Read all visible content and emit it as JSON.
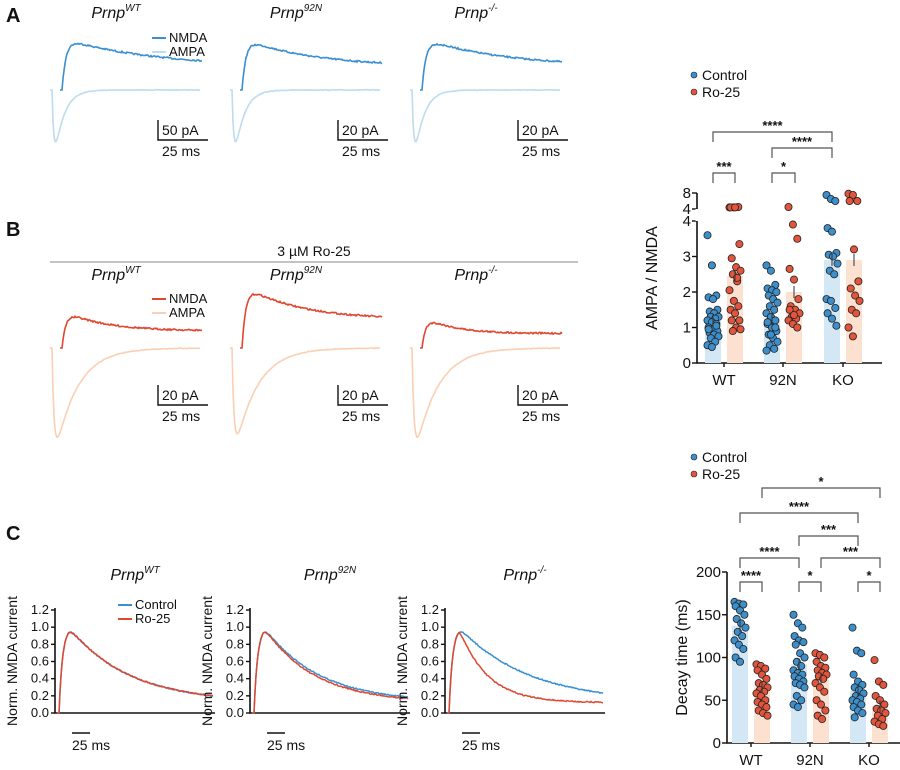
{
  "colors": {
    "nmda": "#3a8fd0",
    "ampa": "#bcdcef",
    "nmda_ro": "#e0472f",
    "ampa_ro": "#fbcfb4",
    "bar_control": "#d3e7f5",
    "bar_ro": "#fde1d0",
    "dot_control": "#3d8fcc",
    "dot_ro": "#e2553c"
  },
  "panels": {
    "A": {
      "label": "A",
      "titles": [
        {
          "base": "Prnp",
          "sup": "WT"
        },
        {
          "base": "Prnp",
          "sup": "92N"
        },
        {
          "base": "Prnp",
          "sup": "-/-"
        }
      ],
      "legend": [
        "NMDA",
        "AMPA"
      ],
      "scale_y": [
        "50 pA",
        "20 pA",
        "20 pA"
      ],
      "scale_x": "25 ms"
    },
    "B": {
      "label": "B",
      "condition": "3 µM Ro-25",
      "titles": [
        {
          "base": "Prnp",
          "sup": "WT"
        },
        {
          "base": "Prnp",
          "sup": "92N"
        },
        {
          "base": "Prnp",
          "sup": "-/-"
        }
      ],
      "legend": [
        "NMDA",
        "AMPA"
      ],
      "scale_y": [
        "20 pA",
        "20 pA",
        "20 pA"
      ],
      "scale_x": "25 ms"
    },
    "C": {
      "label": "C",
      "titles": [
        {
          "base": "Prnp",
          "sup": "WT"
        },
        {
          "base": "Prnp",
          "sup": "92N"
        },
        {
          "base": "Prnp",
          "sup": "-/-"
        }
      ],
      "legend": [
        "Control",
        "Ro-25"
      ],
      "ylabel": "Norm. NMDA current",
      "yticks": [
        "0.0",
        "0.2",
        "0.4",
        "0.6",
        "0.8",
        "1.0",
        "1.2"
      ],
      "scale_x": "25 ms"
    }
  },
  "chart_data": [
    {
      "type": "bar",
      "ylabel": "AMPA / NMDA",
      "categories": [
        "WT",
        "92N",
        "KO"
      ],
      "yticks": [
        "0",
        "1",
        "2",
        "3",
        "4",
        "4",
        "8"
      ],
      "ylim": [
        0,
        8
      ],
      "axis_break": [
        4,
        4
      ],
      "legend": [
        "Control",
        "Ro-25"
      ],
      "legend_placement": "top-left",
      "series": [
        {
          "name": "Control",
          "means": [
            1.2,
            1.25,
            2.9
          ],
          "points": [
            [
              3.6,
              2.75,
              1.9,
              1.85,
              1.8,
              1.5,
              1.45,
              1.4,
              1.3,
              1.3,
              1.25,
              1.2,
              1.15,
              1.1,
              1.0,
              0.95,
              0.9,
              0.85,
              0.8,
              0.75,
              0.7,
              0.6,
              0.5,
              0.45,
              1.05,
              0.95
            ],
            [
              2.75,
              2.6,
              2.2,
              2.1,
              2.05,
              2.0,
              1.9,
              1.8,
              1.7,
              1.6,
              1.5,
              1.4,
              1.3,
              1.2,
              1.1,
              1.0,
              0.9,
              0.8,
              0.7,
              0.6,
              0.5,
              0.4,
              0.35,
              0.8,
              1.0,
              1.15
            ],
            [
              7.5,
              6.5,
              6.0,
              3.8,
              3.7,
              3.1,
              3.05,
              3.0,
              2.8,
              2.6,
              2.5,
              1.8,
              1.75,
              1.55,
              1.4,
              1.25,
              1.05
            ]
          ]
        },
        {
          "name": "Ro-25",
          "means": [
            2.45,
            2.0,
            2.9
          ],
          "points": [
            [
              4.4,
              4.4,
              4.5,
              4.4,
              4.4,
              3.35,
              2.95,
              2.7,
              2.6,
              2.5,
              2.3,
              2.05,
              1.75,
              1.6,
              1.5,
              1.4,
              1.2,
              1.2,
              1.0,
              0.95,
              0.9,
              2.4
            ],
            [
              4.5,
              3.9,
              3.5,
              2.65,
              2.35,
              1.8,
              1.6,
              1.5,
              1.4,
              1.3,
              1.25,
              1.2,
              1.1,
              1.0,
              1.5,
              1.35
            ],
            [
              7.8,
              7.5,
              6.0,
              6.0,
              3.2,
              2.3,
              2.1,
              1.9,
              1.75,
              1.5,
              1.4,
              1.0,
              0.75
            ]
          ]
        }
      ],
      "significance": [
        {
          "from": "WT Control",
          "to": "KO Control",
          "label": "****"
        },
        {
          "from": "92N Control",
          "to": "KO Control",
          "label": "****"
        },
        {
          "from": "WT Control",
          "to": "WT Ro-25",
          "label": "***"
        },
        {
          "from": "92N Control",
          "to": "92N Ro-25",
          "label": "*"
        }
      ]
    },
    {
      "type": "bar",
      "ylabel": "Decay time (ms)",
      "categories": [
        "WT",
        "92N",
        "KO"
      ],
      "yticks": [
        "0",
        "50",
        "100",
        "150",
        "200"
      ],
      "ylim": [
        0,
        200
      ],
      "legend": [
        "Control",
        "Ro-25"
      ],
      "legend_placement": "top-left",
      "series": [
        {
          "name": "Control",
          "means": [
            137,
            92,
            61
          ],
          "points": [
            [
              165,
              163,
              162,
              160,
              155,
              150,
              145,
              140,
              135,
              130,
              125,
              120,
              115,
              110,
              100,
              95
            ],
            [
              150,
              140,
              135,
              125,
              120,
              118,
              115,
              105,
              100,
              95,
              90,
              85,
              82,
              80,
              78,
              75,
              72,
              70,
              68,
              65,
              55,
              50,
              45,
              42
            ],
            [
              135,
              108,
              105,
              80,
              72,
              68,
              65,
              62,
              58,
              55,
              52,
              50,
              48,
              45,
              42,
              38,
              35,
              30
            ]
          ]
        },
        {
          "name": "Ro-25",
          "means": [
            65,
            75,
            43
          ],
          "points": [
            [
              92,
              90,
              87,
              85,
              80,
              75,
              70,
              68,
              65,
              62,
              60,
              58,
              55,
              50,
              48,
              45,
              42,
              38,
              35,
              32
            ],
            [
              105,
              103,
              100,
              95,
              90,
              88,
              85,
              82,
              80,
              78,
              75,
              70,
              65,
              60,
              50,
              45,
              38,
              32,
              28
            ],
            [
              97,
              72,
              68,
              55,
              50,
              45,
              40,
              38,
              35,
              32,
              28,
              25,
              22,
              20
            ]
          ]
        }
      ],
      "significance": [
        {
          "from": "WT Ro-25",
          "to": "KO Ro-25",
          "label": "*"
        },
        {
          "from": "WT Control",
          "to": "KO Control",
          "label": "****"
        },
        {
          "from": "92N Control",
          "to": "KO Control",
          "label": "***"
        },
        {
          "from": "WT Control",
          "to": "92N Control",
          "label": "****"
        },
        {
          "from": "92N Ro-25",
          "to": "KO Ro-25",
          "label": "***"
        },
        {
          "from": "WT Control",
          "to": "WT Ro-25",
          "label": "****"
        },
        {
          "from": "92N Control",
          "to": "92N Ro-25",
          "label": "*"
        },
        {
          "from": "KO Control",
          "to": "KO Ro-25",
          "label": "*"
        }
      ]
    }
  ]
}
